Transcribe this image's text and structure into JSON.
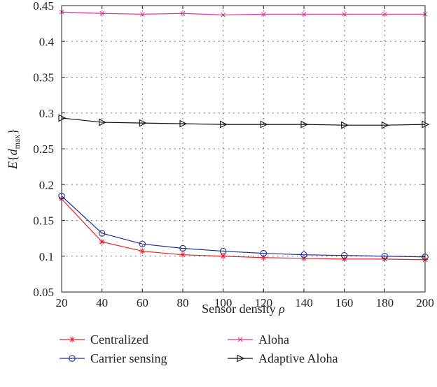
{
  "chart_data": {
    "type": "line",
    "xlabel": "Sensor density ρ",
    "ylabel": "E{d_max}",
    "xlim": [
      20,
      200
    ],
    "ylim": [
      0.05,
      0.45
    ],
    "xticks": [
      20,
      40,
      60,
      80,
      100,
      120,
      140,
      160,
      180,
      200
    ],
    "yticks": [
      0.05,
      0.1,
      0.15,
      0.2,
      0.25,
      0.3,
      0.35,
      0.4,
      0.45
    ],
    "grid": true,
    "legend_position": "bottom, two columns below axes",
    "x": [
      20,
      40,
      60,
      80,
      100,
      120,
      140,
      160,
      180,
      200
    ],
    "series": [
      {
        "name": "Centralized",
        "color": "#e8202a",
        "marker": "asterisk",
        "values": [
          0.18,
          0.12,
          0.107,
          0.102,
          0.1,
          0.098,
          0.097,
          0.096,
          0.096,
          0.095
        ]
      },
      {
        "name": "Carrier sensing",
        "color": "#1f2f8f",
        "marker": "circle",
        "values": [
          0.184,
          0.132,
          0.117,
          0.111,
          0.107,
          0.104,
          0.102,
          0.101,
          0.1,
          0.099
        ]
      },
      {
        "name": "Aloha",
        "color": "#e0309a",
        "marker": "x",
        "values": [
          0.441,
          0.439,
          0.438,
          0.439,
          0.437,
          0.438,
          0.438,
          0.438,
          0.438,
          0.438
        ]
      },
      {
        "name": "Adaptive Aloha",
        "color": "#111111",
        "marker": "triangle-right",
        "values": [
          0.293,
          0.287,
          0.286,
          0.285,
          0.284,
          0.284,
          0.284,
          0.283,
          0.283,
          0.284
        ]
      }
    ]
  }
}
